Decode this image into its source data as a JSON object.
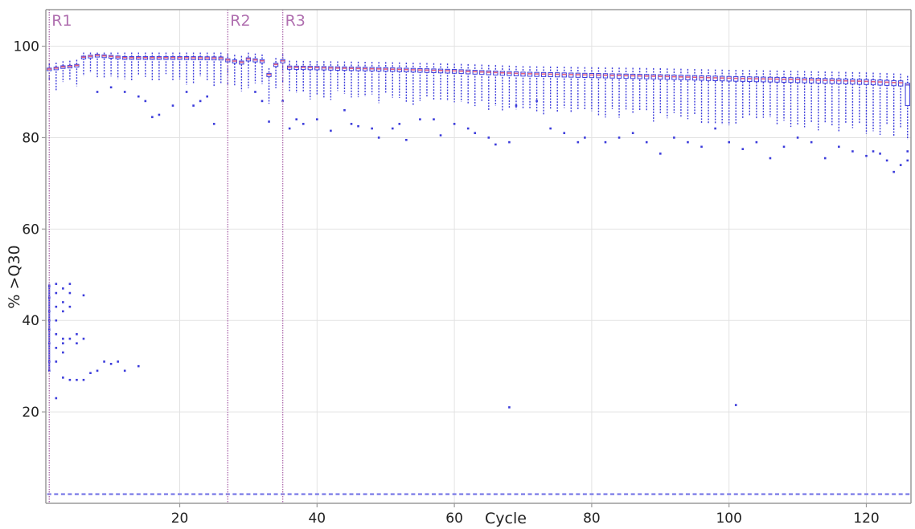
{
  "chart_data": {
    "type": "box",
    "title": "",
    "xlabel": "Cycle",
    "ylabel": "% >Q30",
    "xlim": [
      0.5,
      126.5
    ],
    "ylim": [
      0,
      108
    ],
    "xticks": [
      20,
      40,
      60,
      80,
      100,
      120
    ],
    "yticks": [
      20,
      40,
      60,
      80,
      100
    ],
    "grid": true,
    "colors": {
      "box": "#3b3bdb",
      "median": "#e06080",
      "read_marker": "#b070b0",
      "grid": "#e2e2e2",
      "axis": "#9a9a9a"
    },
    "read_markers": [
      {
        "label": "R1",
        "cycle": 1
      },
      {
        "label": "R2",
        "cycle": 27
      },
      {
        "label": "R3",
        "cycle": 35
      }
    ],
    "median_anchors": [
      [
        1,
        95.0
      ],
      [
        2,
        95.2
      ],
      [
        3,
        95.5
      ],
      [
        4,
        95.6
      ],
      [
        5,
        95.8
      ],
      [
        6,
        97.6
      ],
      [
        7,
        97.8
      ],
      [
        8,
        98.0
      ],
      [
        12,
        97.5
      ],
      [
        20,
        97.5
      ],
      [
        26,
        97.4
      ],
      [
        27,
        97.0
      ],
      [
        29,
        96.5
      ],
      [
        30,
        97.2
      ],
      [
        32,
        96.8
      ],
      [
        33,
        93.8
      ],
      [
        34,
        96.0
      ],
      [
        35,
        96.8
      ],
      [
        36,
        95.4
      ],
      [
        40,
        95.3
      ],
      [
        50,
        95.0
      ],
      [
        60,
        94.6
      ],
      [
        70,
        94.0
      ],
      [
        80,
        93.7
      ],
      [
        90,
        93.4
      ],
      [
        100,
        93.0
      ],
      [
        110,
        92.7
      ],
      [
        120,
        92.3
      ],
      [
        125,
        92.0
      ],
      [
        126,
        91.5
      ]
    ],
    "outliers": [
      [
        1,
        47.5
      ],
      [
        1,
        45
      ],
      [
        1,
        42
      ],
      [
        1,
        40
      ],
      [
        1,
        38
      ],
      [
        1,
        35
      ],
      [
        1,
        31
      ],
      [
        1,
        29
      ],
      [
        2,
        48
      ],
      [
        2,
        46
      ],
      [
        2,
        43
      ],
      [
        2,
        40
      ],
      [
        2,
        37
      ],
      [
        2,
        34
      ],
      [
        2,
        31
      ],
      [
        2,
        23
      ],
      [
        3,
        47
      ],
      [
        3,
        44
      ],
      [
        3,
        42
      ],
      [
        3,
        36
      ],
      [
        3,
        35
      ],
      [
        3,
        33
      ],
      [
        3,
        27.5
      ],
      [
        4,
        48
      ],
      [
        4,
        46
      ],
      [
        4,
        43
      ],
      [
        4,
        36
      ],
      [
        4,
        27
      ],
      [
        5,
        37
      ],
      [
        5,
        35
      ],
      [
        5,
        27
      ],
      [
        6,
        45.5
      ],
      [
        6,
        36
      ],
      [
        6,
        27
      ],
      [
        7,
        28.5
      ],
      [
        8,
        29
      ],
      [
        9,
        31
      ],
      [
        10,
        30.5
      ],
      [
        11,
        31
      ],
      [
        12,
        29
      ],
      [
        14,
        30
      ],
      [
        8,
        90
      ],
      [
        10,
        91
      ],
      [
        12,
        90
      ],
      [
        14,
        89
      ],
      [
        15,
        88
      ],
      [
        16,
        84.5
      ],
      [
        17,
        85
      ],
      [
        19,
        87
      ],
      [
        21,
        90
      ],
      [
        22,
        87
      ],
      [
        23,
        88
      ],
      [
        24,
        89
      ],
      [
        25,
        83
      ],
      [
        31,
        90
      ],
      [
        32,
        88
      ],
      [
        33,
        83.5
      ],
      [
        35,
        88
      ],
      [
        36,
        82
      ],
      [
        37,
        84
      ],
      [
        38,
        83
      ],
      [
        40,
        84
      ],
      [
        42,
        81.5
      ],
      [
        44,
        86
      ],
      [
        45,
        83
      ],
      [
        46,
        82.5
      ],
      [
        48,
        82
      ],
      [
        49,
        80
      ],
      [
        51,
        82
      ],
      [
        52,
        83
      ],
      [
        53,
        79.5
      ],
      [
        55,
        84
      ],
      [
        57,
        84
      ],
      [
        58,
        80.5
      ],
      [
        60,
        83
      ],
      [
        62,
        82
      ],
      [
        63,
        81
      ],
      [
        65,
        80
      ],
      [
        66,
        78.5
      ],
      [
        68,
        79
      ],
      [
        69,
        87
      ],
      [
        72,
        88
      ],
      [
        74,
        82
      ],
      [
        76,
        81
      ],
      [
        78,
        79
      ],
      [
        79,
        80
      ],
      [
        82,
        79
      ],
      [
        84,
        80
      ],
      [
        86,
        81
      ],
      [
        88,
        79
      ],
      [
        90,
        76.5
      ],
      [
        92,
        80
      ],
      [
        94,
        79
      ],
      [
        96,
        78
      ],
      [
        98,
        82
      ],
      [
        100,
        79
      ],
      [
        102,
        77.5
      ],
      [
        104,
        79
      ],
      [
        106,
        75.5
      ],
      [
        108,
        78
      ],
      [
        110,
        80
      ],
      [
        112,
        79
      ],
      [
        114,
        75.5
      ],
      [
        116,
        78
      ],
      [
        118,
        77
      ],
      [
        120,
        76
      ],
      [
        121,
        77
      ],
      [
        122,
        76.5
      ],
      [
        123,
        75
      ],
      [
        124,
        72.5
      ],
      [
        125,
        74
      ],
      [
        126,
        75
      ],
      [
        126,
        77
      ],
      [
        68,
        21
      ],
      [
        101,
        21.5
      ]
    ],
    "floor_value": 2
  }
}
